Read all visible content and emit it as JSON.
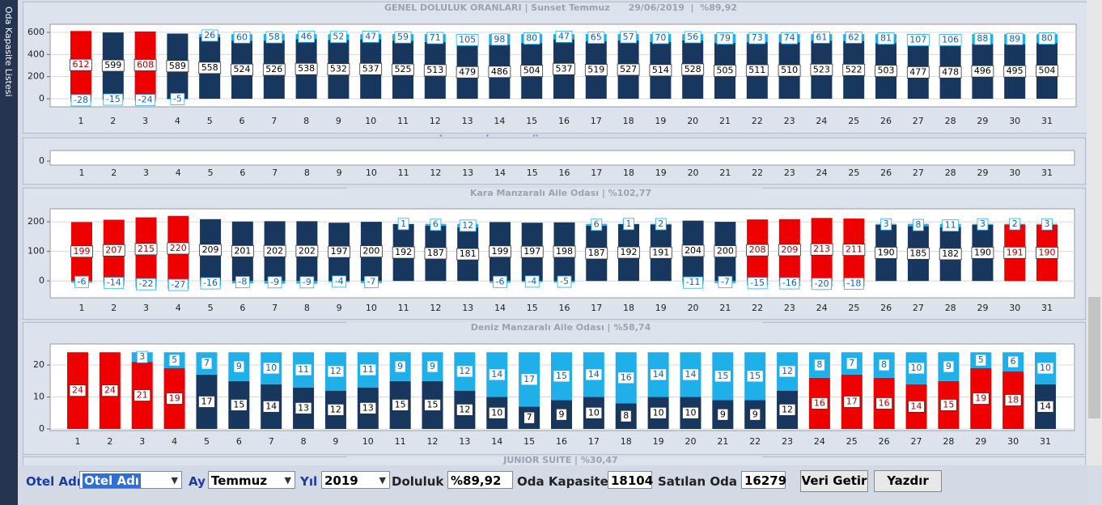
{
  "sidebar_tab": "Oda Kapasite Listesi",
  "section_title": "ODA TİPLERİNE GÖRE DOLULUK ORANLARI",
  "chart_data": [
    {
      "type": "bar",
      "title": "GENEL DOLULUK ORANLARI | Sunset Temmuz      29/06/2019  |  %89,92",
      "categories": [
        "1",
        "2",
        "3",
        "4",
        "5",
        "6",
        "7",
        "8",
        "9",
        "10",
        "11",
        "12",
        "13",
        "14",
        "15",
        "16",
        "17",
        "18",
        "19",
        "20",
        "21",
        "22",
        "23",
        "24",
        "25",
        "26",
        "27",
        "28",
        "29",
        "30",
        "31"
      ],
      "series": [
        {
          "color": "#17375e",
          "colors": [
            "#ee0000",
            "#17375e",
            "#ee0000",
            "#17375e",
            "#17375e",
            "#17375e",
            "#17375e",
            "#17375e",
            "#17375e",
            "#17375e",
            "#17375e",
            "#17375e",
            "#17375e",
            "#17375e",
            "#17375e",
            "#17375e",
            "#17375e",
            "#17375e",
            "#17375e",
            "#17375e",
            "#17375e",
            "#17375e",
            "#17375e",
            "#17375e",
            "#17375e",
            "#17375e",
            "#17375e",
            "#17375e",
            "#17375e",
            "#17375e",
            "#17375e"
          ],
          "values": [
            612,
            599,
            608,
            589,
            558,
            524,
            526,
            538,
            532,
            537,
            525,
            513,
            479,
            486,
            504,
            537,
            519,
            527,
            514,
            528,
            505,
            511,
            510,
            523,
            522,
            503,
            477,
            478,
            496,
            495,
            504
          ]
        },
        {
          "color": "#1fb0ea",
          "values": [
            -28,
            -15,
            -24,
            -5,
            26,
            60,
            58,
            46,
            52,
            47,
            59,
            71,
            105,
            98,
            80,
            47,
            65,
            57,
            70,
            56,
            79,
            73,
            74,
            61,
            62,
            81,
            107,
            106,
            88,
            89,
            80
          ]
        }
      ],
      "ylim": [
        -73,
        673
      ],
      "yticks": [
        0,
        200,
        400,
        600
      ],
      "grid": true,
      "stacked": true
    },
    {
      "type": "bar",
      "categories": [
        "1",
        "2",
        "3",
        "4",
        "5",
        "6",
        "7",
        "8",
        "9",
        "10",
        "11",
        "12",
        "13",
        "14",
        "15",
        "16",
        "17",
        "18",
        "19",
        "20",
        "21",
        "22",
        "23",
        "24",
        "25",
        "26",
        "27",
        "28",
        "29",
        "30",
        "31"
      ],
      "yticks": [
        0
      ]
    },
    {
      "type": "bar",
      "title": "Kara Manzaralı Aile Odası | %102,77",
      "categories": [
        "1",
        "2",
        "3",
        "4",
        "5",
        "6",
        "7",
        "8",
        "9",
        "10",
        "11",
        "12",
        "13",
        "14",
        "15",
        "16",
        "17",
        "18",
        "19",
        "20",
        "21",
        "22",
        "23",
        "24",
        "25",
        "26",
        "27",
        "28",
        "29",
        "30",
        "31"
      ],
      "series": [
        {
          "color": "#17375e",
          "colors": [
            "#ee0000",
            "#ee0000",
            "#ee0000",
            "#ee0000",
            "#17375e",
            "#17375e",
            "#17375e",
            "#17375e",
            "#17375e",
            "#17375e",
            "#17375e",
            "#17375e",
            "#17375e",
            "#17375e",
            "#17375e",
            "#17375e",
            "#17375e",
            "#17375e",
            "#17375e",
            "#17375e",
            "#17375e",
            "#ee0000",
            "#ee0000",
            "#ee0000",
            "#ee0000",
            "#17375e",
            "#17375e",
            "#17375e",
            "#17375e",
            "#ee0000",
            "#ee0000"
          ],
          "values": [
            199,
            207,
            215,
            220,
            209,
            201,
            202,
            202,
            197,
            200,
            192,
            187,
            181,
            199,
            197,
            198,
            187,
            192,
            191,
            204,
            200,
            208,
            209,
            213,
            211,
            190,
            185,
            182,
            190,
            191,
            190
          ]
        },
        {
          "color": "#1fb0ea",
          "values": [
            -6,
            -14,
            -22,
            -27,
            -16,
            -8,
            -9,
            -9,
            -4,
            -7,
            1,
            6,
            12,
            -6,
            -4,
            -5,
            6,
            1,
            2,
            -11,
            -7,
            -15,
            -16,
            -20,
            -18,
            3,
            8,
            11,
            3,
            2,
            3
          ]
        }
      ],
      "ylim": [
        -57,
        244
      ],
      "yticks": [
        0,
        100,
        200
      ],
      "grid": true,
      "stacked": true
    },
    {
      "type": "bar",
      "title": "Deniz Manzaralı Aile Odası | %58,74",
      "categories": [
        "1",
        "2",
        "3",
        "4",
        "5",
        "6",
        "7",
        "8",
        "9",
        "10",
        "11",
        "12",
        "13",
        "14",
        "15",
        "16",
        "17",
        "18",
        "19",
        "20",
        "21",
        "22",
        "23",
        "24",
        "25",
        "26",
        "27",
        "28",
        "29",
        "30",
        "31"
      ],
      "series": [
        {
          "color": "#17375e",
          "colors": [
            "#ee0000",
            "#ee0000",
            "#ee0000",
            "#ee0000",
            "#17375e",
            "#17375e",
            "#17375e",
            "#17375e",
            "#17375e",
            "#17375e",
            "#17375e",
            "#17375e",
            "#17375e",
            "#17375e",
            "#17375e",
            "#17375e",
            "#17375e",
            "#17375e",
            "#17375e",
            "#17375e",
            "#17375e",
            "#17375e",
            "#17375e",
            "#ee0000",
            "#ee0000",
            "#ee0000",
            "#ee0000",
            "#ee0000",
            "#ee0000",
            "#ee0000",
            "#17375e"
          ],
          "values": [
            24,
            24,
            21,
            19,
            17,
            15,
            14,
            13,
            12,
            13,
            15,
            15,
            12,
            10,
            7,
            9,
            10,
            8,
            10,
            10,
            9,
            9,
            12,
            16,
            17,
            16,
            14,
            15,
            19,
            18,
            14
          ]
        },
        {
          "color": "#1fb0ea",
          "values": [
            null,
            null,
            3,
            5,
            7,
            9,
            10,
            11,
            12,
            11,
            9,
            9,
            12,
            14,
            17,
            15,
            14,
            16,
            14,
            14,
            15,
            15,
            12,
            8,
            7,
            8,
            10,
            9,
            5,
            6,
            10
          ]
        }
      ],
      "ylim": [
        -0.5,
        26.6
      ],
      "yticks": [
        0,
        10,
        20
      ],
      "grid": true,
      "stacked": true
    },
    {
      "type": "bar",
      "title": "JUNIOR SUITE | %30,47"
    }
  ],
  "toolbar": {
    "hotel_label": "Otel Adı",
    "hotel_value": "Otel Adı",
    "month_label": "Ay",
    "month_value": "Temmuz",
    "year_label": "Yıl",
    "year_value": "2019",
    "occupancy_label": "Doluluk",
    "occupancy_value": "%89,92",
    "capacity_label": "Oda Kapasite",
    "capacity_value": "18104",
    "sold_label": "Satılan Oda",
    "sold_value": "16279",
    "fetch_button": "Veri Getir",
    "print_button": "Yazdır"
  }
}
